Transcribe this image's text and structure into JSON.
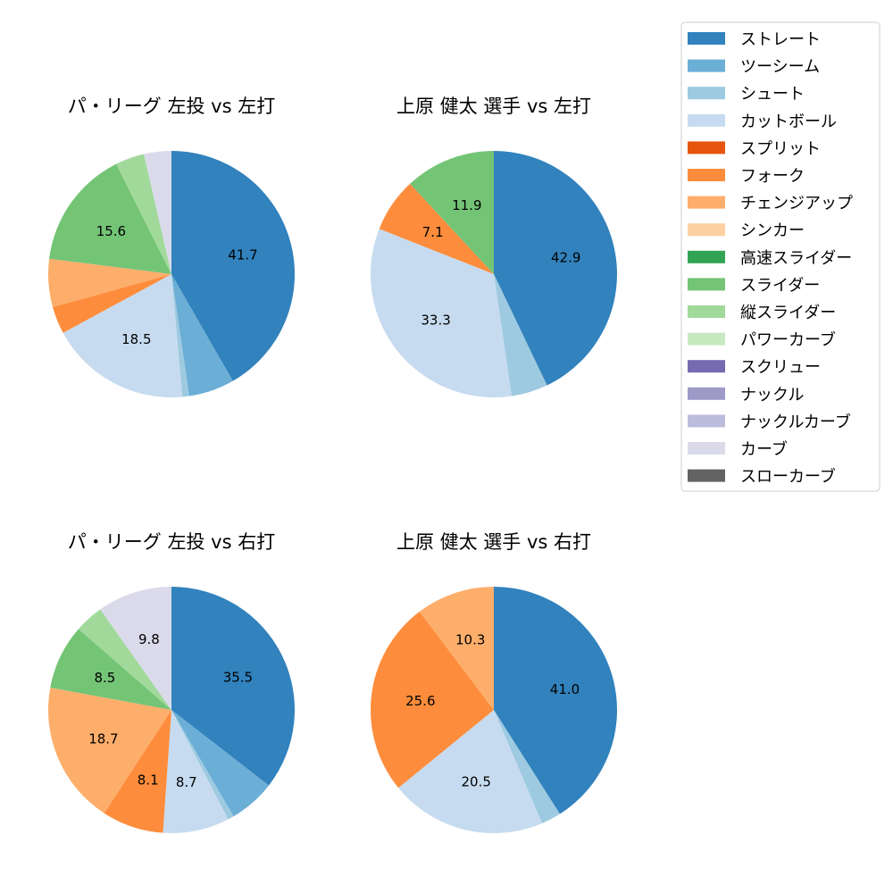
{
  "colors": {
    "ストレート": "#3182bd",
    "ツーシーム": "#6baed6",
    "シュート": "#9ecae1",
    "カットボール": "#c6dbef",
    "スプリット": "#e6550d",
    "フォーク": "#fd8d3c",
    "チェンジアップ": "#fdae6b",
    "シンカー": "#fdd0a2",
    "高速スライダー": "#31a354",
    "スライダー": "#74c476",
    "縦スライダー": "#a1d99b",
    "パワーカーブ": "#c7e9c0",
    "スクリュー": "#756bb1",
    "ナックル": "#9e9ac8",
    "ナックルカーブ": "#bcbddc",
    "カーブ": "#dadaeb",
    "スローカーブ": "#636363"
  },
  "legend": {
    "entries": [
      "ストレート",
      "ツーシーム",
      "シュート",
      "カットボール",
      "スプリット",
      "フォーク",
      "チェンジアップ",
      "シンカー",
      "高速スライダー",
      "スライダー",
      "縦スライダー",
      "パワーカーブ",
      "スクリュー",
      "ナックル",
      "ナックルカーブ",
      "カーブ",
      "スローカーブ"
    ],
    "placement": "right"
  },
  "chart_data": [
    {
      "type": "pie",
      "title": "パ・リーグ 左投 vs 左打",
      "slices": [
        {
          "label": "ストレート",
          "value": 41.7,
          "shown": "41.7"
        },
        {
          "label": "ツーシーム",
          "value": 6.0,
          "shown": ""
        },
        {
          "label": "シュート",
          "value": 0.9,
          "shown": ""
        },
        {
          "label": "カットボール",
          "value": 18.5,
          "shown": "18.5"
        },
        {
          "label": "フォーク",
          "value": 3.6,
          "shown": ""
        },
        {
          "label": "チェンジアップ",
          "value": 6.3,
          "shown": ""
        },
        {
          "label": "スライダー",
          "value": 15.6,
          "shown": "15.6"
        },
        {
          "label": "縦スライダー",
          "value": 3.8,
          "shown": ""
        },
        {
          "label": "カーブ",
          "value": 3.6,
          "shown": ""
        }
      ]
    },
    {
      "type": "pie",
      "title": "上原 健太 選手 vs 左打",
      "slices": [
        {
          "label": "ストレート",
          "value": 42.9,
          "shown": "42.9"
        },
        {
          "label": "シュート",
          "value": 4.8,
          "shown": ""
        },
        {
          "label": "カットボール",
          "value": 33.3,
          "shown": "33.3"
        },
        {
          "label": "フォーク",
          "value": 7.1,
          "shown": "7.1"
        },
        {
          "label": "スライダー",
          "value": 11.9,
          "shown": "11.9"
        }
      ]
    },
    {
      "type": "pie",
      "title": "パ・リーグ 左投 vs 右打",
      "slices": [
        {
          "label": "ストレート",
          "value": 35.5,
          "shown": "35.5"
        },
        {
          "label": "ツーシーム",
          "value": 6.1,
          "shown": ""
        },
        {
          "label": "シュート",
          "value": 0.8,
          "shown": ""
        },
        {
          "label": "カットボール",
          "value": 8.7,
          "shown": "8.7"
        },
        {
          "label": "フォーク",
          "value": 8.1,
          "shown": "8.1"
        },
        {
          "label": "チェンジアップ",
          "value": 18.7,
          "shown": "18.7"
        },
        {
          "label": "スライダー",
          "value": 8.5,
          "shown": "8.5"
        },
        {
          "label": "縦スライダー",
          "value": 3.8,
          "shown": ""
        },
        {
          "label": "カーブ",
          "value": 9.8,
          "shown": "9.8"
        }
      ]
    },
    {
      "type": "pie",
      "title": "上原 健太 選手 vs 右打",
      "slices": [
        {
          "label": "ストレート",
          "value": 41.0,
          "shown": "41.0"
        },
        {
          "label": "シュート",
          "value": 2.6,
          "shown": ""
        },
        {
          "label": "カットボール",
          "value": 20.5,
          "shown": "20.5"
        },
        {
          "label": "フォーク",
          "value": 25.6,
          "shown": "25.6"
        },
        {
          "label": "チェンジアップ",
          "value": 10.3,
          "shown": "10.3"
        }
      ]
    }
  ]
}
